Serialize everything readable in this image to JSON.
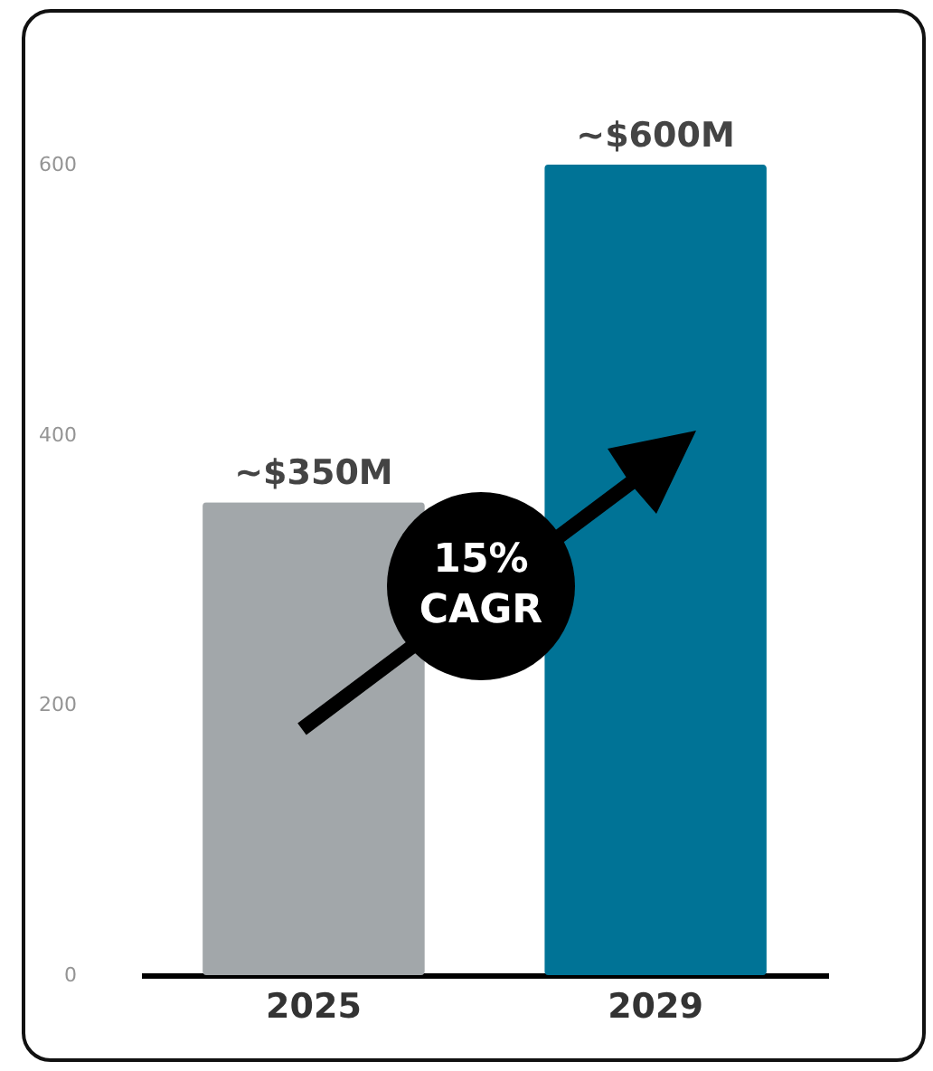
{
  "chart_data": {
    "type": "bar",
    "categories": [
      "2025",
      "2029"
    ],
    "values": [
      350,
      600
    ],
    "colors": [
      "#a2a7aa",
      "#007396"
    ],
    "value_labels": [
      "~$350M",
      "~$600M"
    ],
    "ylim": [
      0,
      600
    ],
    "yticks": [
      0,
      200,
      400,
      600
    ],
    "grid": false,
    "annotations": [
      "15% CAGR"
    ]
  }
}
